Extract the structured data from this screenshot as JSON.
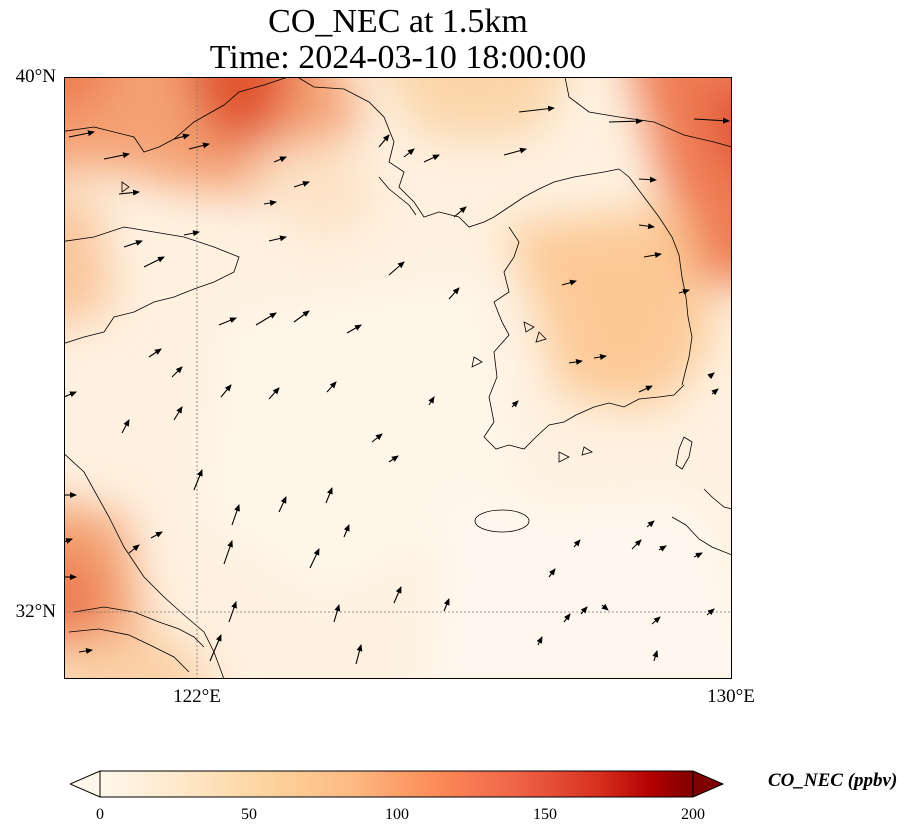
{
  "title": {
    "line1": "CO_NEC at 1.5km",
    "line2": "Time: 2024-03-10 18:00:00"
  },
  "axes": {
    "lat_labels": [
      "40°N",
      "32°N"
    ],
    "lon_labels": [
      "122°E",
      "130°E"
    ]
  },
  "colorbar": {
    "label": "CO_NEC (ppbv)",
    "ticks": [
      "0",
      "50",
      "100",
      "150",
      "200"
    ],
    "range": [
      0,
      200
    ],
    "colormap": "OrRd",
    "extend": "both"
  },
  "colors": {
    "low": "#fff7ec",
    "mid": "#fdbb84",
    "high": "#d7301f",
    "max": "#7f0000",
    "coast": "#000000",
    "grid": "#777777"
  }
}
